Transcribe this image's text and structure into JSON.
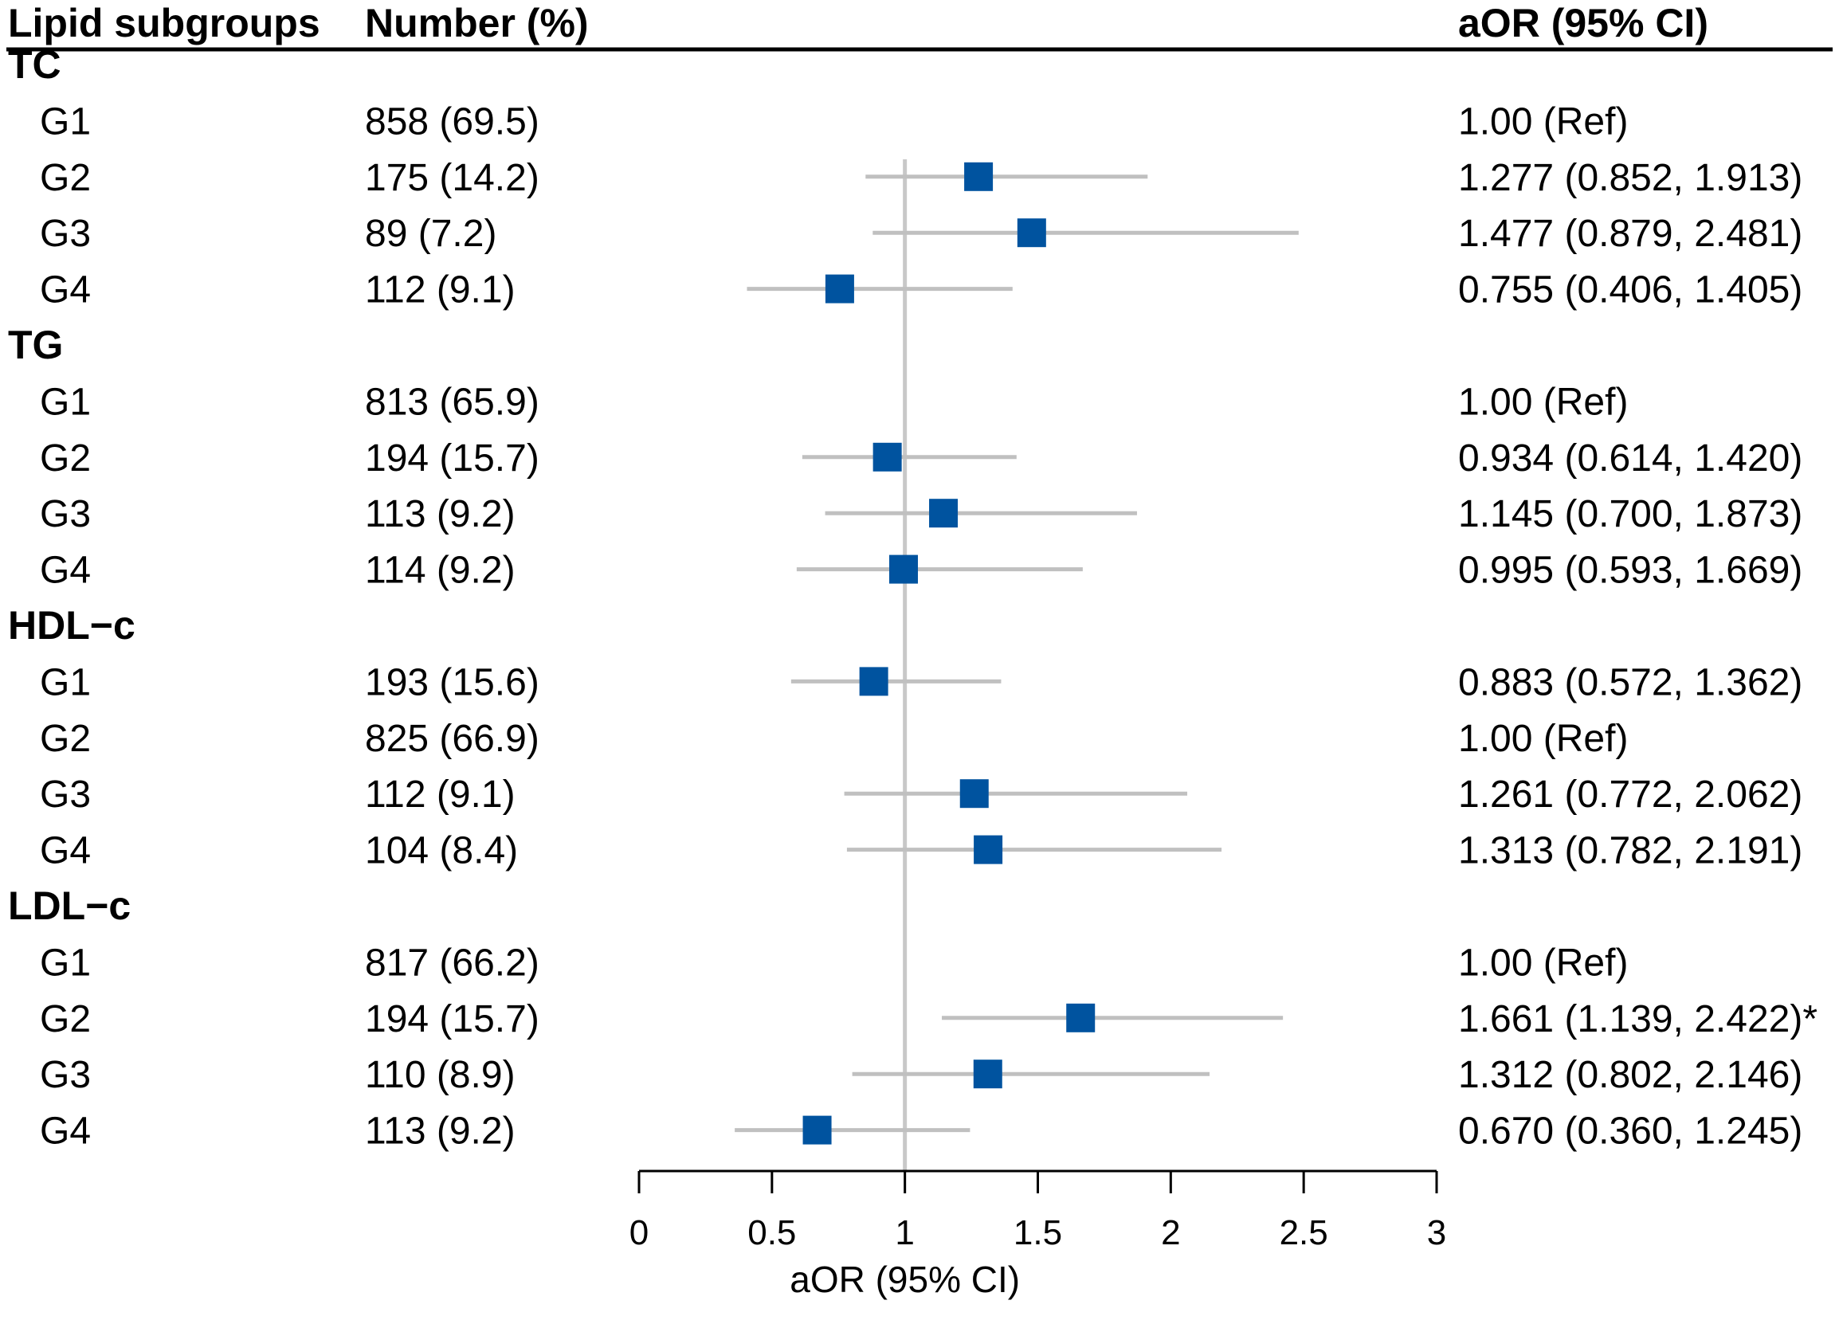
{
  "header": {
    "col_subgroup": "Lipid subgroups",
    "col_number": "Number (%)",
    "col_aor": "aOR (95% CI)"
  },
  "colors": {
    "marker": "#00539f",
    "ci_line": "#c0c0c0",
    "ref_line": "#c8c8c8",
    "axis": "#000000"
  },
  "chart_data": {
    "type": "forest",
    "title": "",
    "xlabel": "aOR (95% CI)",
    "xlim": [
      0,
      3
    ],
    "xticks": [
      0,
      0.5,
      1,
      1.5,
      2,
      2.5,
      3
    ],
    "xtick_labels": [
      "0",
      "0.5",
      "1",
      "1.5",
      "2",
      "2.5",
      "3"
    ],
    "reference_value": 1,
    "groups": [
      {
        "name": "TC",
        "rows": [
          {
            "label": "G1",
            "number": "858 (69.5)",
            "aor_text": "1.00 (Ref)",
            "or": null,
            "lo": null,
            "hi": null
          },
          {
            "label": "G2",
            "number": "175 (14.2)",
            "aor_text": "1.277 (0.852, 1.913)",
            "or": 1.277,
            "lo": 0.852,
            "hi": 1.913
          },
          {
            "label": "G3",
            "number": "89 (7.2)",
            "aor_text": "1.477 (0.879, 2.481)",
            "or": 1.477,
            "lo": 0.879,
            "hi": 2.481
          },
          {
            "label": "G4",
            "number": "112 (9.1)",
            "aor_text": "0.755 (0.406, 1.405)",
            "or": 0.755,
            "lo": 0.406,
            "hi": 1.405
          }
        ]
      },
      {
        "name": "TG",
        "rows": [
          {
            "label": "G1",
            "number": "813 (65.9)",
            "aor_text": "1.00 (Ref)",
            "or": null,
            "lo": null,
            "hi": null
          },
          {
            "label": "G2",
            "number": "194 (15.7)",
            "aor_text": "0.934 (0.614, 1.420)",
            "or": 0.934,
            "lo": 0.614,
            "hi": 1.42
          },
          {
            "label": "G3",
            "number": "113 (9.2)",
            "aor_text": "1.145 (0.700, 1.873)",
            "or": 1.145,
            "lo": 0.7,
            "hi": 1.873
          },
          {
            "label": "G4",
            "number": "114 (9.2)",
            "aor_text": "0.995 (0.593, 1.669)",
            "or": 0.995,
            "lo": 0.593,
            "hi": 1.669
          }
        ]
      },
      {
        "name": "HDL−c",
        "rows": [
          {
            "label": "G1",
            "number": "193 (15.6)",
            "aor_text": "0.883 (0.572, 1.362)",
            "or": 0.883,
            "lo": 0.572,
            "hi": 1.362
          },
          {
            "label": "G2",
            "number": "825 (66.9)",
            "aor_text": "1.00 (Ref)",
            "or": null,
            "lo": null,
            "hi": null
          },
          {
            "label": "G3",
            "number": "112 (9.1)",
            "aor_text": "1.261 (0.772, 2.062)",
            "or": 1.261,
            "lo": 0.772,
            "hi": 2.062
          },
          {
            "label": "G4",
            "number": "104 (8.4)",
            "aor_text": "1.313 (0.782, 2.191)",
            "or": 1.313,
            "lo": 0.782,
            "hi": 2.191
          }
        ]
      },
      {
        "name": "LDL−c",
        "rows": [
          {
            "label": "G1",
            "number": "817 (66.2)",
            "aor_text": "1.00 (Ref)",
            "or": null,
            "lo": null,
            "hi": null
          },
          {
            "label": "G2",
            "number": "194 (15.7)",
            "aor_text": "1.661 (1.139, 2.422)*",
            "or": 1.661,
            "lo": 1.139,
            "hi": 2.422
          },
          {
            "label": "G3",
            "number": "110 (8.9)",
            "aor_text": "1.312 (0.802, 2.146)",
            "or": 1.312,
            "lo": 0.802,
            "hi": 2.146
          },
          {
            "label": "G4",
            "number": "113 (9.2)",
            "aor_text": "0.670 (0.360, 1.245)",
            "or": 0.67,
            "lo": 0.36,
            "hi": 1.245
          }
        ]
      }
    ]
  }
}
